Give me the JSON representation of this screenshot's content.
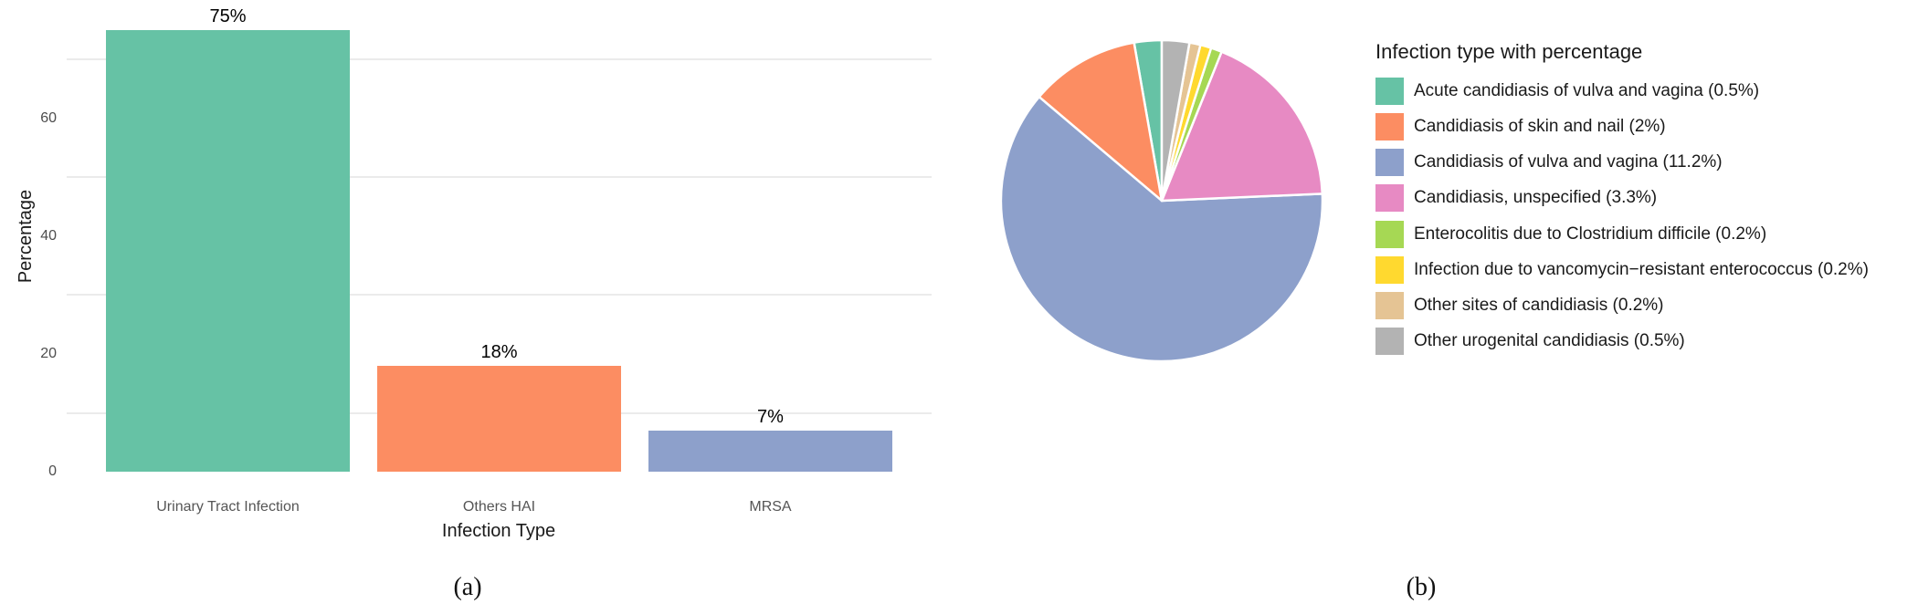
{
  "figure": {
    "panel_a_caption": "(a)",
    "panel_b_caption": "(b)"
  },
  "chart_data": [
    {
      "type": "bar",
      "title": "",
      "categories": [
        "Urinary Tract Infection",
        "Others HAI",
        "MRSA"
      ],
      "values": [
        75,
        18,
        7
      ],
      "bar_labels": [
        "75%",
        "18%",
        "7%"
      ],
      "colors": [
        "#66C2A5",
        "#FC8D62",
        "#8DA0CB"
      ],
      "xlabel": "Infection Type",
      "ylabel": "Percentage",
      "ylim": [
        0,
        75
      ],
      "yticks": [
        0,
        20,
        40,
        60
      ],
      "minor_gridlines": [
        10,
        30,
        50,
        70
      ],
      "grid": "minor-only",
      "gridline_color": "#ebebeb",
      "axis_text_color": "#4d4d4d",
      "caption": "(a)"
    },
    {
      "type": "pie",
      "legend_title": "Infection type with percentage",
      "legend_position": "right",
      "start_angle": "top",
      "direction": "counterclockwise",
      "slice_border_color": "#ffffff",
      "slices": [
        {
          "label": "Acute candidiasis of vulva and vagina (0.5%)",
          "value": 0.5,
          "color": "#66C2A5"
        },
        {
          "label": "Candidiasis of skin and nail (2%)",
          "value": 2,
          "color": "#FC8D62"
        },
        {
          "label": "Candidiasis of vulva and vagina (11.2%)",
          "value": 11.2,
          "color": "#8DA0CB"
        },
        {
          "label": "Candidiasis, unspecified (3.3%)",
          "value": 3.3,
          "color": "#E78AC3"
        },
        {
          "label": "Enterocolitis due to Clostridium difficile (0.2%)",
          "value": 0.2,
          "color": "#A6D854"
        },
        {
          "label": "Infection due to vancomycin−resistant enterococcus (0.2%)",
          "value": 0.2,
          "color": "#FFD92F"
        },
        {
          "label": "Other sites of candidiasis (0.2%)",
          "value": 0.2,
          "color": "#E5C494"
        },
        {
          "label": "Other urogenital candidiasis (0.5%)",
          "value": 0.5,
          "color": "#B3B3B3"
        }
      ],
      "caption": "(b)"
    }
  ]
}
